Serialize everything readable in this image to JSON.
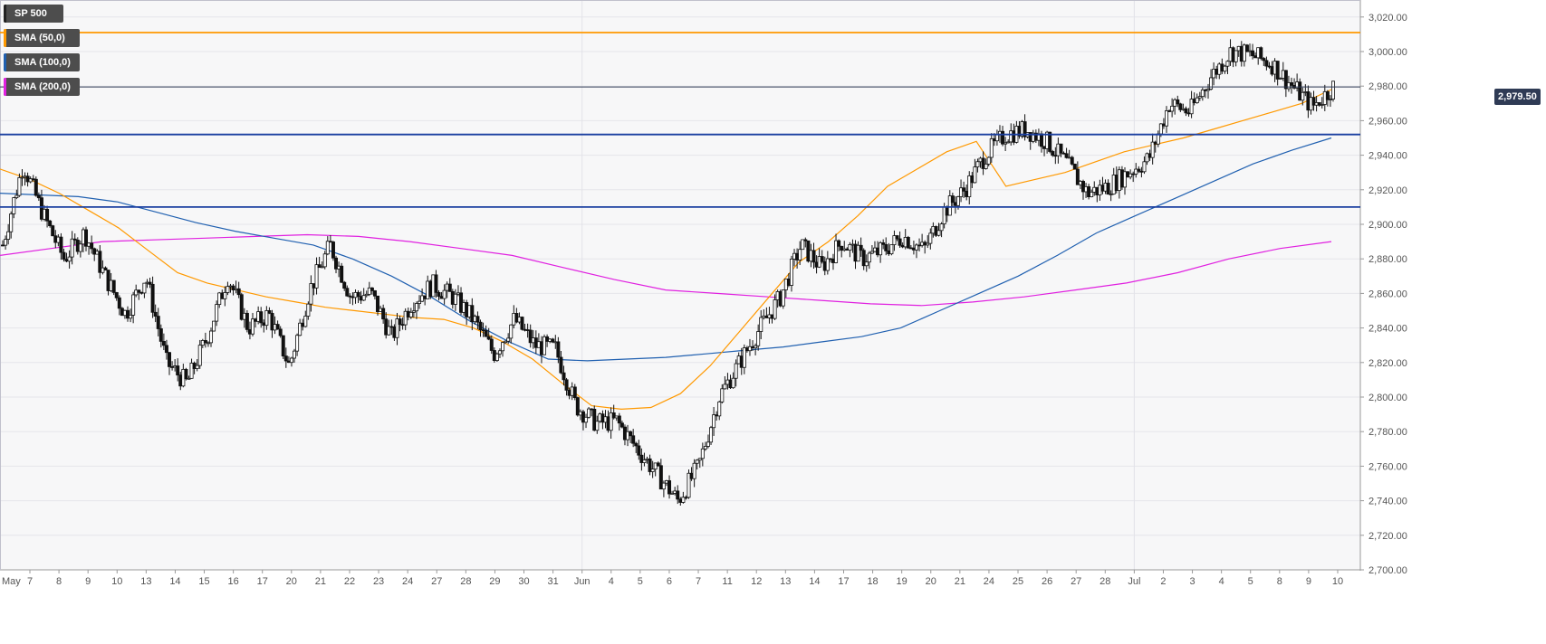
{
  "legend": [
    {
      "label": "SP 500",
      "color": "#222222"
    },
    {
      "label": "SMA (50,0)",
      "color": "#ff9900"
    },
    {
      "label": "SMA (100,0)",
      "color": "#2060b0"
    },
    {
      "label": "SMA (200,0)",
      "color": "#e020e0"
    }
  ],
  "current_price": {
    "label": "2,979.50",
    "value": 2979.5
  },
  "chart_data": {
    "type": "candlestick",
    "title": "",
    "xlabel": "",
    "ylabel": "",
    "ylim": [
      2700,
      3025
    ],
    "y_ticks": [
      2700,
      2720,
      2740,
      2760,
      2780,
      2800,
      2820,
      2840,
      2860,
      2880,
      2900,
      2920,
      2940,
      2960,
      2980,
      3000,
      3020
    ],
    "y_tick_labels": [
      "2,700.00",
      "2,720.00",
      "2,740.00",
      "2,760.00",
      "2,780.00",
      "2,800.00",
      "2,820.00",
      "2,840.00",
      "2,860.00",
      "2,880.00",
      "2,900.00",
      "2,920.00",
      "2,940.00",
      "2,960.00",
      "2,980.00",
      "3,000.00",
      "3,020.00"
    ],
    "x_ticks": [
      "May",
      "7",
      "8",
      "9",
      "10",
      "13",
      "14",
      "15",
      "16",
      "17",
      "20",
      "21",
      "22",
      "23",
      "24",
      "27",
      "28",
      "29",
      "30",
      "31",
      "Jun",
      "4",
      "5",
      "6",
      "7",
      "11",
      "12",
      "13",
      "14",
      "17",
      "18",
      "19",
      "20",
      "21",
      "24",
      "25",
      "26",
      "27",
      "28",
      "Jul",
      "2",
      "3",
      "4",
      "5",
      "8",
      "9",
      "10"
    ],
    "horizontal_lines": [
      {
        "value": 3011,
        "color": "#ff9900"
      },
      {
        "value": 2952,
        "color": "#1a3fa0"
      },
      {
        "value": 2910,
        "color": "#1a3fa0"
      },
      {
        "value": 2979.5,
        "color": "#2f3b55"
      }
    ],
    "close": [
      2888,
      2935,
      2905,
      2880,
      2895,
      2870,
      2848,
      2870,
      2820,
      2808,
      2835,
      2870,
      2840,
      2848,
      2818,
      2862,
      2888,
      2858,
      2860,
      2835,
      2855,
      2865,
      2858,
      2845,
      2825,
      2845,
      2830,
      2828,
      2795,
      2785,
      2786,
      2770,
      2755,
      2740,
      2760,
      2800,
      2820,
      2840,
      2858,
      2888,
      2875,
      2890,
      2880,
      2885,
      2893,
      2885,
      2908,
      2920,
      2940,
      2952,
      2955,
      2948,
      2935,
      2918,
      2922,
      2930,
      2938,
      2970,
      2965,
      2985,
      3000,
      2998,
      2993,
      2980,
      2968,
      2979.5
    ],
    "sma50": [
      2932,
      2926,
      2918,
      2908,
      2898,
      2885,
      2872,
      2866,
      2862,
      2858,
      2855,
      2852,
      2850,
      2848,
      2846,
      2845,
      2840,
      2832,
      2822,
      2808,
      2795,
      2793,
      2794,
      2802,
      2818,
      2838,
      2858,
      2878,
      2890,
      2905,
      2922,
      2932,
      2942,
      2948,
      2922,
      2926,
      2930,
      2936,
      2942,
      2946,
      2950,
      2955,
      2960,
      2965,
      2970,
      2978
    ],
    "sma100": [
      2918,
      2917,
      2916,
      2913,
      2907,
      2901,
      2896,
      2892,
      2888,
      2880,
      2870,
      2858,
      2844,
      2832,
      2822,
      2821,
      2822,
      2823,
      2825,
      2827,
      2829,
      2832,
      2835,
      2840,
      2850,
      2860,
      2870,
      2882,
      2895,
      2905,
      2915,
      2925,
      2935,
      2943,
      2950
    ],
    "sma200": [
      2882,
      2886,
      2890,
      2891,
      2892,
      2893,
      2894,
      2893,
      2890,
      2886,
      2882,
      2875,
      2868,
      2862,
      2860,
      2858,
      2856,
      2854,
      2853,
      2855,
      2858,
      2862,
      2866,
      2872,
      2880,
      2886,
      2890
    ]
  }
}
